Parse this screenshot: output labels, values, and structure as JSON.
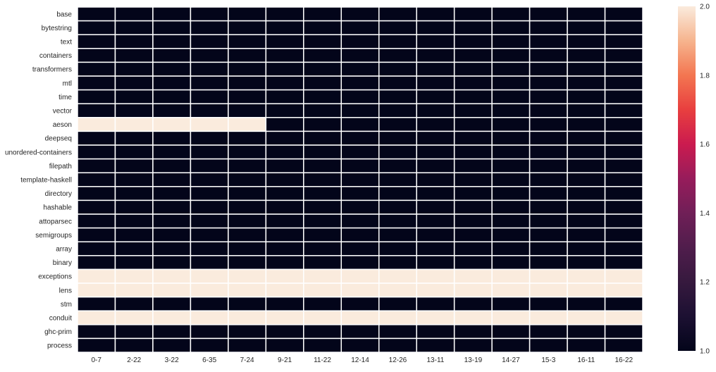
{
  "chart_data": {
    "type": "heatmap",
    "title": "",
    "xlabel": "",
    "ylabel": "",
    "x": [
      "0-7",
      "2-22",
      "3-22",
      "6-35",
      "7-24",
      "9-21",
      "11-22",
      "12-14",
      "12-26",
      "13-11",
      "13-19",
      "14-27",
      "15-3",
      "16-11",
      "16-22"
    ],
    "y": [
      "base",
      "bytestring",
      "text",
      "containers",
      "transformers",
      "mtl",
      "time",
      "vector",
      "aeson",
      "deepseq",
      "unordered-containers",
      "filepath",
      "template-haskell",
      "directory",
      "hashable",
      "attoparsec",
      "semigroups",
      "array",
      "binary",
      "exceptions",
      "lens",
      "stm",
      "conduit",
      "ghc-prim",
      "process"
    ],
    "values": [
      [
        1,
        1,
        1,
        1,
        1,
        1,
        1,
        1,
        1,
        1,
        1,
        1,
        1,
        1,
        1
      ],
      [
        1,
        1,
        1,
        1,
        1,
        1,
        1,
        1,
        1,
        1,
        1,
        1,
        1,
        1,
        1
      ],
      [
        1,
        1,
        1,
        1,
        1,
        1,
        1,
        1,
        1,
        1,
        1,
        1,
        1,
        1,
        1
      ],
      [
        1,
        1,
        1,
        1,
        1,
        1,
        1,
        1,
        1,
        1,
        1,
        1,
        1,
        1,
        1
      ],
      [
        1,
        1,
        1,
        1,
        1,
        1,
        1,
        1,
        1,
        1,
        1,
        1,
        1,
        1,
        1
      ],
      [
        1,
        1,
        1,
        1,
        1,
        1,
        1,
        1,
        1,
        1,
        1,
        1,
        1,
        1,
        1
      ],
      [
        1,
        1,
        1,
        1,
        1,
        1,
        1,
        1,
        1,
        1,
        1,
        1,
        1,
        1,
        1
      ],
      [
        1,
        1,
        1,
        1,
        1,
        1,
        1,
        1,
        1,
        1,
        1,
        1,
        1,
        1,
        1
      ],
      [
        2,
        2,
        2,
        2,
        2,
        1,
        1,
        1,
        1,
        1,
        1,
        1,
        1,
        1,
        1
      ],
      [
        1,
        1,
        1,
        1,
        1,
        1,
        1,
        1,
        1,
        1,
        1,
        1,
        1,
        1,
        1
      ],
      [
        1,
        1,
        1,
        1,
        1,
        1,
        1,
        1,
        1,
        1,
        1,
        1,
        1,
        1,
        1
      ],
      [
        1,
        1,
        1,
        1,
        1,
        1,
        1,
        1,
        1,
        1,
        1,
        1,
        1,
        1,
        1
      ],
      [
        1,
        1,
        1,
        1,
        1,
        1,
        1,
        1,
        1,
        1,
        1,
        1,
        1,
        1,
        1
      ],
      [
        1,
        1,
        1,
        1,
        1,
        1,
        1,
        1,
        1,
        1,
        1,
        1,
        1,
        1,
        1
      ],
      [
        1,
        1,
        1,
        1,
        1,
        1,
        1,
        1,
        1,
        1,
        1,
        1,
        1,
        1,
        1
      ],
      [
        1,
        1,
        1,
        1,
        1,
        1,
        1,
        1,
        1,
        1,
        1,
        1,
        1,
        1,
        1
      ],
      [
        1,
        1,
        1,
        1,
        1,
        1,
        1,
        1,
        1,
        1,
        1,
        1,
        1,
        1,
        1
      ],
      [
        1,
        1,
        1,
        1,
        1,
        1,
        1,
        1,
        1,
        1,
        1,
        1,
        1,
        1,
        1
      ],
      [
        1,
        1,
        1,
        1,
        1,
        1,
        1,
        1,
        1,
        1,
        1,
        1,
        1,
        1,
        1
      ],
      [
        2,
        2,
        2,
        2,
        2,
        2,
        2,
        2,
        2,
        2,
        2,
        2,
        2,
        2,
        2
      ],
      [
        2,
        2,
        2,
        2,
        2,
        2,
        2,
        2,
        2,
        2,
        2,
        2,
        2,
        2,
        2
      ],
      [
        1,
        1,
        1,
        1,
        1,
        1,
        1,
        1,
        1,
        1,
        1,
        1,
        1,
        1,
        1
      ],
      [
        2,
        2,
        2,
        2,
        2,
        2,
        2,
        2,
        2,
        2,
        2,
        2,
        2,
        2,
        2
      ],
      [
        1,
        1,
        1,
        1,
        1,
        1,
        1,
        1,
        1,
        1,
        1,
        1,
        1,
        1,
        1
      ],
      [
        1,
        1,
        1,
        1,
        1,
        1,
        1,
        1,
        1,
        1,
        1,
        1,
        1,
        1,
        1
      ]
    ],
    "colorbar": {
      "min": 1.0,
      "max": 2.0,
      "ticks": [
        "1.0",
        "1.2",
        "1.4",
        "1.6",
        "1.8",
        "2.0"
      ],
      "colormap": "rocket",
      "low_color": "#03051a",
      "high_color": "#faebdd"
    },
    "grid": false,
    "cell_border_color": "#ffffff"
  }
}
